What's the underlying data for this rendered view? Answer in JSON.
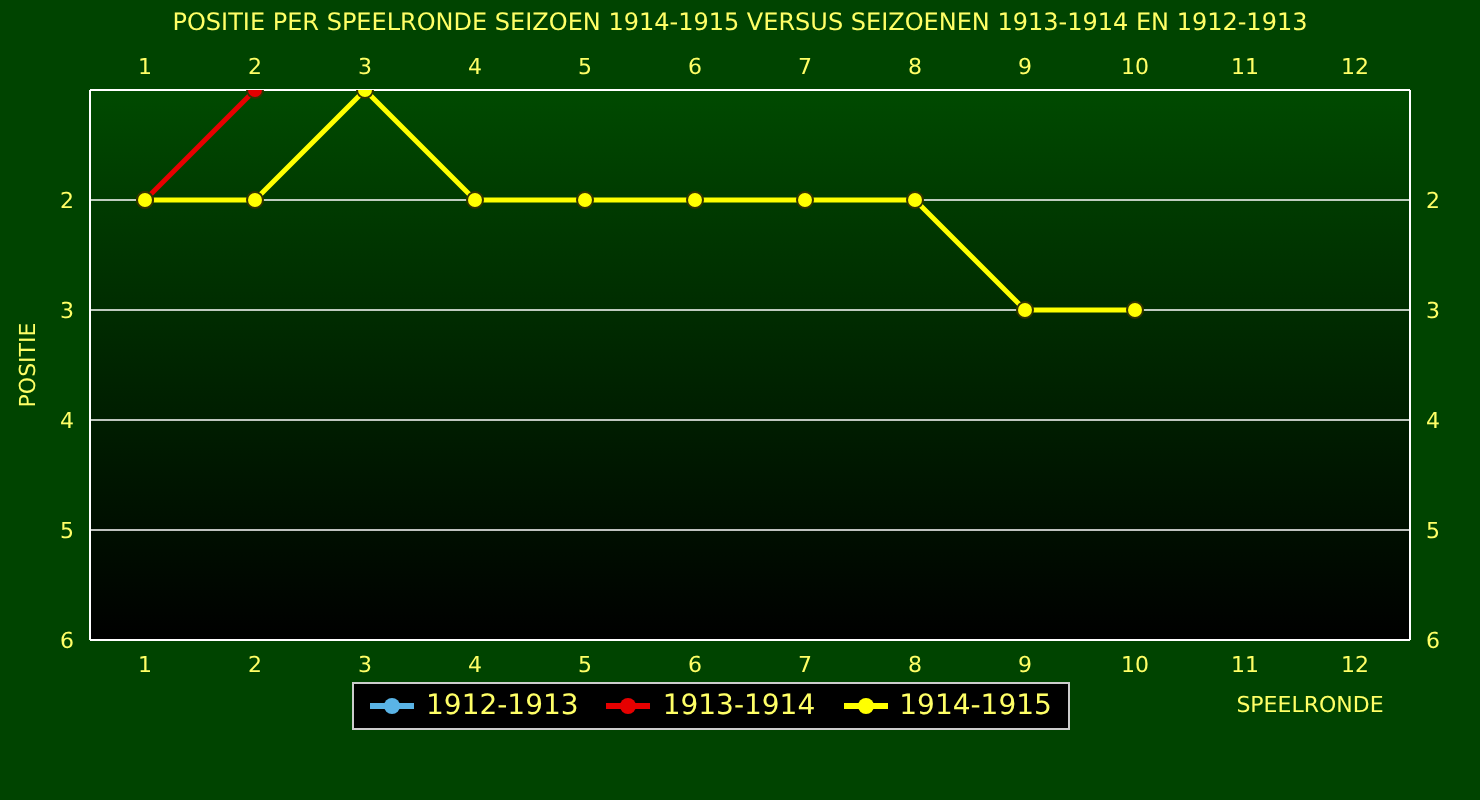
{
  "chart_data": {
    "type": "line",
    "title": "POSITIE PER SPEELRONDE SEIZOEN 1914-1915 VERSUS SEIZOENEN 1913-1914 EN 1912-1913",
    "xlabel": "SPEELRONDE",
    "ylabel": "POSITIE",
    "x": [
      1,
      2,
      3,
      4,
      5,
      6,
      7,
      8,
      9,
      10
    ],
    "series": [
      {
        "name": "1912-1913",
        "color": "#5ab4e6",
        "values": [
          null,
          null,
          null,
          null,
          null,
          null,
          null,
          null,
          null,
          null
        ]
      },
      {
        "name": "1913-1914",
        "color": "#e60000",
        "values": [
          2,
          1,
          null,
          null,
          null,
          null,
          null,
          null,
          null,
          null
        ]
      },
      {
        "name": "1914-1915",
        "color": "#ffff00",
        "values": [
          2,
          2,
          1,
          2,
          2,
          2,
          2,
          2,
          3,
          3
        ]
      }
    ],
    "xlim": [
      0.5,
      12.5
    ],
    "xticks": [
      1,
      2,
      3,
      4,
      5,
      6,
      7,
      8,
      9,
      10,
      11,
      12
    ],
    "x2lim": [
      0.5,
      12.5
    ],
    "x2ticks": [
      1,
      2,
      3,
      4,
      5,
      6,
      7,
      8,
      9,
      10,
      11,
      12
    ],
    "ylim": [
      6,
      1
    ],
    "yticks": [
      2,
      3,
      4,
      5,
      6
    ],
    "y2lim": [
      6,
      1
    ],
    "y2ticks": [
      2,
      3,
      4,
      5,
      6
    ],
    "grid": "y",
    "legend": "bottom",
    "marker": "circle",
    "line_style": "solid"
  }
}
